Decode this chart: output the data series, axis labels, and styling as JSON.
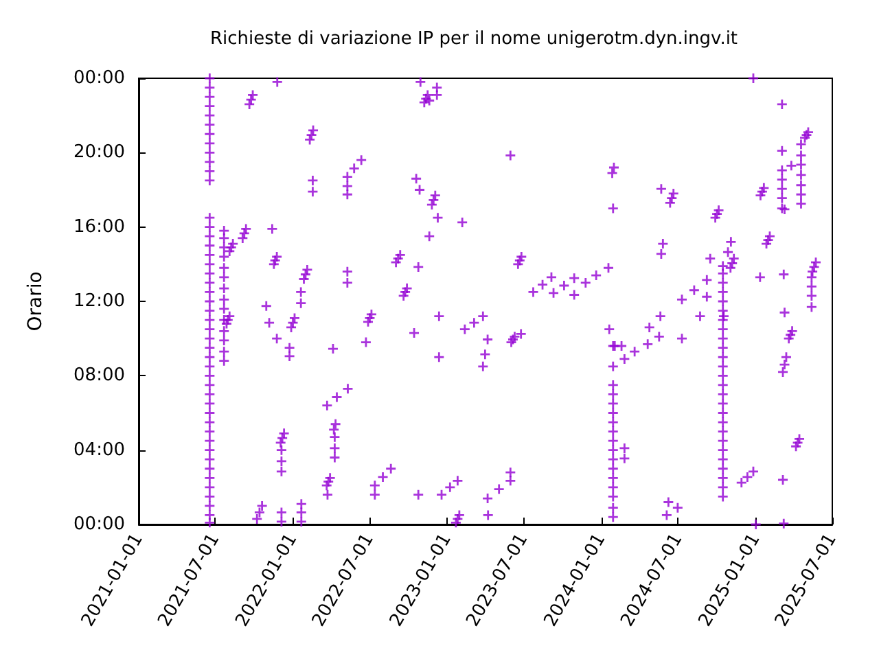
{
  "chart_data": {
    "type": "scatter",
    "title": "Richieste di variazione IP per il nome unigerotm.dyn.ingv.it",
    "ylabel": "Orario",
    "marker": "cross",
    "xlim": [
      "2021-01-01",
      "2025-07-01"
    ],
    "xticks": [
      "2021-01-01",
      "2021-07-01",
      "2022-01-01",
      "2022-07-01",
      "2023-01-01",
      "2023-07-01",
      "2024-01-01",
      "2024-07-01",
      "2025-01-01",
      "2025-07-01"
    ],
    "ylim": [
      0,
      24
    ],
    "yticks": [
      {
        "value": 0,
        "label": "00:00"
      },
      {
        "value": 4,
        "label": "04:00"
      },
      {
        "value": 8,
        "label": "08:00"
      },
      {
        "value": 12,
        "label": "12:00"
      },
      {
        "value": 16,
        "label": "16:00"
      },
      {
        "value": 20,
        "label": "20:00"
      },
      {
        "value": 24,
        "label": "00:00"
      }
    ],
    "series": [
      {
        "color": "#9400d3",
        "x": [
          "2021-06-18",
          "2021-06-18",
          "2021-06-18",
          "2021-06-18",
          "2021-06-18",
          "2021-06-18",
          "2021-06-18",
          "2021-06-18",
          "2021-06-18",
          "2021-06-18",
          "2021-06-18",
          "2021-06-18",
          "2021-06-18",
          "2021-06-18",
          "2021-06-18",
          "2021-06-18",
          "2021-06-18",
          "2021-06-18",
          "2021-06-18",
          "2021-06-18",
          "2021-06-18",
          "2021-06-18",
          "2021-06-18",
          "2021-06-18",
          "2021-06-18",
          "2021-06-18",
          "2021-06-18",
          "2021-06-18",
          "2021-06-18",
          "2021-06-18",
          "2021-06-18",
          "2021-06-18",
          "2021-06-18",
          "2021-06-18",
          "2021-06-18",
          "2021-06-18",
          "2021-06-18",
          "2021-06-18",
          "2021-06-18",
          "2021-06-18",
          "2021-06-18",
          "2021-06-18",
          "2021-06-18",
          "2021-06-18",
          "2021-06-18",
          "2021-06-18",
          "2021-07-22",
          "2021-07-22",
          "2021-07-22",
          "2021-07-22",
          "2021-07-22",
          "2021-07-22",
          "2021-07-22",
          "2021-07-22",
          "2021-07-22",
          "2021-07-22",
          "2021-07-22",
          "2021-07-22",
          "2021-07-22",
          "2021-07-22",
          "2021-09-20",
          "2021-09-24",
          "2021-09-28",
          "2021-11-25",
          "2022-02-10",
          "2022-02-14",
          "2022-02-18",
          "2022-05-10",
          "2022-05-26",
          "2022-06-12",
          "2022-02-17",
          "2022-02-17",
          "2022-05-10",
          "2022-05-10",
          "2021-09-04",
          "2021-09-08",
          "2021-09-12",
          "2021-08-04",
          "2021-08-08",
          "2021-08-12",
          "2021-11-13",
          "2021-11-17",
          "2021-11-20",
          "2021-11-24",
          "2022-01-27",
          "2022-01-31",
          "2022-02-04",
          "2022-01-20",
          "2022-01-20",
          "2022-05-10",
          "2022-05-10",
          "2021-10-30",
          "2021-07-28",
          "2021-07-31",
          "2021-08-04",
          "2021-11-06",
          "2021-12-28",
          "2022-01-01",
          "2022-01-05",
          "2021-11-24",
          "2021-12-24",
          "2021-12-24",
          "2022-04-06",
          "2022-06-28",
          "2022-07-02",
          "2022-07-06",
          "2022-06-23",
          "2022-03-23",
          "2022-04-15",
          "2022-05-11",
          "2022-04-08",
          "2022-04-12",
          "2022-04-10",
          "2022-04-10",
          "2022-04-10",
          "2021-12-03",
          "2021-12-07",
          "2021-12-11",
          "2021-12-05",
          "2021-12-05",
          "2021-12-05",
          "2022-03-22",
          "2022-03-26",
          "2022-03-30",
          "2022-03-24",
          "2021-10-08",
          "2021-10-14",
          "2021-10-20",
          "2021-12-05",
          "2021-12-05",
          "2022-01-21",
          "2022-01-21",
          "2022-01-21",
          "2022-11-08",
          "2022-11-12",
          "2022-11-16",
          "2022-10-30",
          "2022-11-20",
          "2022-12-08",
          "2022-12-08",
          "2023-05-31",
          "2022-10-20",
          "2022-10-28",
          "2022-11-26",
          "2022-11-30",
          "2022-12-04",
          "2022-12-10",
          "2023-02-06",
          "2022-11-20",
          "2022-09-02",
          "2022-09-07",
          "2022-09-12",
          "2022-10-25",
          "2022-09-20",
          "2022-09-24",
          "2022-09-28",
          "2022-12-13",
          "2022-10-15",
          "2023-02-12",
          "2023-03-06",
          "2023-03-27",
          "2023-04-07",
          "2023-06-02",
          "2023-06-06",
          "2023-06-10",
          "2023-06-25",
          "2023-04-01",
          "2023-03-27",
          "2022-12-13",
          "2023-06-18",
          "2023-06-22",
          "2023-06-26",
          "2023-07-24",
          "2023-08-15",
          "2023-09-05",
          "2023-09-10",
          "2023-10-05",
          "2023-10-29",
          "2023-10-29",
          "2023-11-25",
          "2023-12-20",
          "2024-01-18",
          "2024-01-27",
          "2024-01-31",
          "2024-01-29",
          "2024-01-20",
          "2024-01-29",
          "2024-01-29",
          "2024-01-29",
          "2024-01-29",
          "2024-01-29",
          "2024-01-29",
          "2024-01-29",
          "2024-01-29",
          "2024-01-29",
          "2024-01-29",
          "2024-01-29",
          "2024-01-29",
          "2024-01-29",
          "2024-01-29",
          "2024-01-29",
          "2024-01-29",
          "2024-01-29",
          "2022-07-14",
          "2022-08-02",
          "2022-08-21",
          "2022-07-14",
          "2022-10-25",
          "2022-12-19",
          "2023-01-08",
          "2023-01-26",
          "2023-01-22",
          "2023-01-26",
          "2023-01-30",
          "2023-04-07",
          "2023-05-04",
          "2023-05-31",
          "2023-05-31",
          "2023-04-08",
          "2024-12-26",
          "2025-03-04",
          "2025-04-27",
          "2025-05-01",
          "2025-05-05",
          "2025-04-18",
          "2025-04-18",
          "2025-04-18",
          "2025-04-18",
          "2025-04-18",
          "2025-04-18",
          "2025-04-18",
          "2025-03-04",
          "2025-03-04",
          "2025-03-04",
          "2025-03-04",
          "2025-03-04",
          "2025-03-04",
          "2025-03-26",
          "2025-03-10",
          "2025-01-12",
          "2025-01-16",
          "2025-01-20",
          "2024-05-22",
          "2024-06-12",
          "2024-06-16",
          "2024-06-20",
          "2024-09-27",
          "2024-10-01",
          "2024-10-05",
          "2025-01-26",
          "2025-01-30",
          "2025-02-03",
          "2024-11-03",
          "2024-10-27",
          "2024-05-26",
          "2024-05-22",
          "2024-09-15",
          "2024-11-02",
          "2024-11-06",
          "2024-11-10",
          "2025-01-11",
          "2025-03-08",
          "2025-05-15",
          "2025-05-19",
          "2025-05-23",
          "2025-05-13",
          "2025-05-13",
          "2025-05-13",
          "2025-05-13",
          "2025-03-10",
          "2024-07-10",
          "2024-08-08",
          "2024-09-07",
          "2024-09-07",
          "2024-05-20",
          "2024-04-24",
          "2024-07-10",
          "2024-08-22",
          "2024-10-17",
          "2024-02-25",
          "2024-03-20",
          "2024-04-20",
          "2024-05-17",
          "2024-02-02",
          "2024-02-18",
          "2024-10-15",
          "2024-10-15",
          "2024-10-15",
          "2024-10-15",
          "2024-10-15",
          "2024-10-15",
          "2024-10-15",
          "2024-10-15",
          "2024-10-15",
          "2024-10-15",
          "2024-10-15",
          "2024-10-15",
          "2024-10-15",
          "2024-10-15",
          "2024-10-15",
          "2024-10-15",
          "2024-10-15",
          "2024-10-15",
          "2024-10-15",
          "2024-10-15",
          "2024-10-15",
          "2024-10-15",
          "2024-10-15",
          "2024-10-15",
          "2024-10-15",
          "2024-10-15",
          "2025-03-20",
          "2025-03-24",
          "2025-03-28",
          "2025-03-06",
          "2025-03-10",
          "2025-03-14",
          "2025-04-06",
          "2025-04-10",
          "2025-04-14",
          "2024-11-28",
          "2024-12-12",
          "2024-12-26",
          "2025-03-06",
          "2024-06-08",
          "2024-06-04",
          "2024-06-30",
          "2025-01-01",
          "2025-03-08",
          "2024-02-25",
          "2024-02-25"
        ],
        "values": [
          0.1,
          0.5,
          1.0,
          1.5,
          2.0,
          2.5,
          3.0,
          3.5,
          4.0,
          4.5,
          5.0,
          5.5,
          6.0,
          6.5,
          7.0,
          7.5,
          8.0,
          8.5,
          9.0,
          9.5,
          10.0,
          10.5,
          11.0,
          11.5,
          12.0,
          12.5,
          13.0,
          13.5,
          14.0,
          14.5,
          15.0,
          15.5,
          16.0,
          16.5,
          18.5,
          19.0,
          19.5,
          20.0,
          20.5,
          21.0,
          21.5,
          22.0,
          22.5,
          23.0,
          23.5,
          24.0,
          8.8,
          9.3,
          9.9,
          10.4,
          11.0,
          11.6,
          12.1,
          12.7,
          13.3,
          13.8,
          14.4,
          14.9,
          15.4,
          15.8,
          22.6,
          22.85,
          23.1,
          23.8,
          20.7,
          20.95,
          21.2,
          18.7,
          19.15,
          19.6,
          18.5,
          17.9,
          18.2,
          17.75,
          15.4,
          15.66,
          15.9,
          14.7,
          14.9,
          15.1,
          15.9,
          14.0,
          14.2,
          14.4,
          13.2,
          13.45,
          13.7,
          12.5,
          11.9,
          13.6,
          13.0,
          11.75,
          10.8,
          11.0,
          11.2,
          10.85,
          10.6,
          10.85,
          11.1,
          10.0,
          9.5,
          9.05,
          9.45,
          10.9,
          11.1,
          11.3,
          9.8,
          6.4,
          6.85,
          7.3,
          5.1,
          5.4,
          4.7,
          4.1,
          3.6,
          4.4,
          4.65,
          4.9,
          4.0,
          3.4,
          2.85,
          2.1,
          2.3,
          2.5,
          1.6,
          0.3,
          0.65,
          1.0,
          0.65,
          0.15,
          1.1,
          0.65,
          0.15,
          22.7,
          22.9,
          23.1,
          23.8,
          22.8,
          23.5,
          23.1,
          19.85,
          18.6,
          18.0,
          17.2,
          17.45,
          17.7,
          16.5,
          16.25,
          15.5,
          14.1,
          14.3,
          14.5,
          13.85,
          12.3,
          12.5,
          12.7,
          11.2,
          10.3,
          10.5,
          10.85,
          11.2,
          9.95,
          9.8,
          9.95,
          10.1,
          10.25,
          9.15,
          8.5,
          9.0,
          14.0,
          14.2,
          14.4,
          12.5,
          12.9,
          13.3,
          12.45,
          12.85,
          13.25,
          12.35,
          13.0,
          13.4,
          13.8,
          18.9,
          19.2,
          17.0,
          10.5,
          9.6,
          8.5,
          0.4,
          0.9,
          1.5,
          2.0,
          2.5,
          3.0,
          3.5,
          4.0,
          4.5,
          5.0,
          5.5,
          6.0,
          6.5,
          7.0,
          7.5,
          2.1,
          2.55,
          3.0,
          1.6,
          1.6,
          1.6,
          2.0,
          2.35,
          0.1,
          0.3,
          0.5,
          1.4,
          1.9,
          2.35,
          2.8,
          0.5,
          24.0,
          22.6,
          20.8,
          20.95,
          21.1,
          20.45,
          19.85,
          19.35,
          18.8,
          18.25,
          17.75,
          17.25,
          20.1,
          19.05,
          18.55,
          18.05,
          17.55,
          17.0,
          19.3,
          16.95,
          17.7,
          17.9,
          18.1,
          18.05,
          17.3,
          17.55,
          17.8,
          16.5,
          16.7,
          16.9,
          15.1,
          15.3,
          15.5,
          15.2,
          14.65,
          15.1,
          14.55,
          14.3,
          13.8,
          14.05,
          14.3,
          13.3,
          13.45,
          13.6,
          13.85,
          14.1,
          13.3,
          12.8,
          12.3,
          11.7,
          11.4,
          12.1,
          12.6,
          13.15,
          12.25,
          11.2,
          10.6,
          10.0,
          11.2,
          11.2,
          8.9,
          9.3,
          9.7,
          10.1,
          9.6,
          9.6,
          1.5,
          2.0,
          2.5,
          3.0,
          3.5,
          4.0,
          4.5,
          5.0,
          5.5,
          6.0,
          6.5,
          7.0,
          7.5,
          8.0,
          8.5,
          9.0,
          9.5,
          10.0,
          10.5,
          11.0,
          11.5,
          12.0,
          12.5,
          13.0,
          13.5,
          13.9,
          10.0,
          10.2,
          10.4,
          8.2,
          8.6,
          9.0,
          4.2,
          4.4,
          4.6,
          2.25,
          2.55,
          2.85,
          2.4,
          1.2,
          0.5,
          0.9,
          0.0,
          0.05,
          4.1,
          3.55
        ]
      }
    ]
  }
}
